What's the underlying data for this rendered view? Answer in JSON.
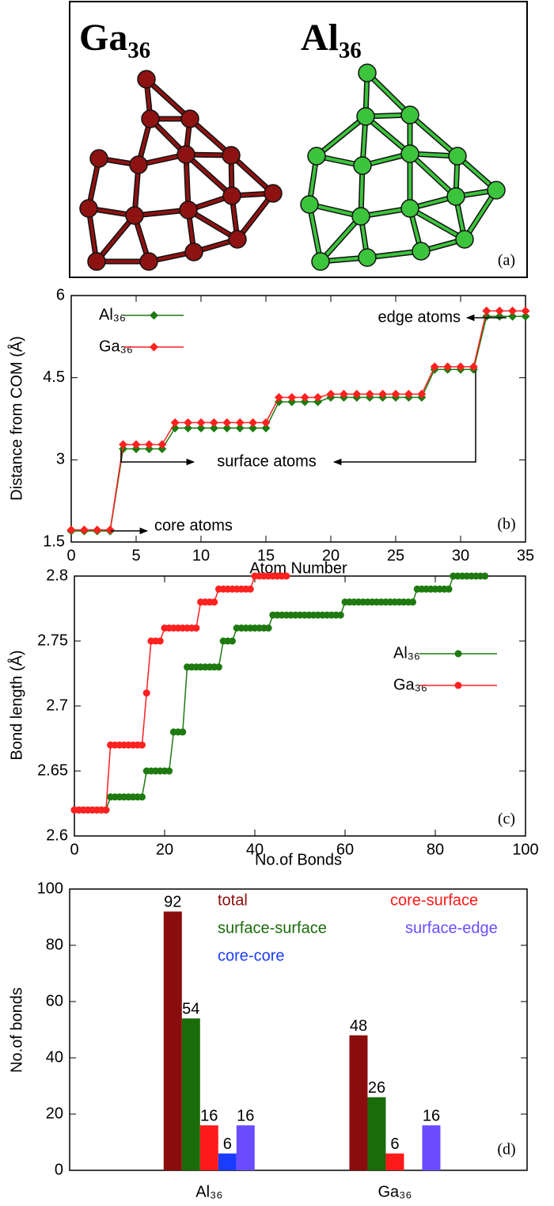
{
  "image_panel": {
    "labels": [
      "Ga₃₆",
      "Al₃₆"
    ],
    "panel_label": "(a)"
  },
  "chart_data": [
    {
      "type": "line",
      "panel_label": "(b)",
      "x_label": "Atom Number",
      "y_label": "Distance from COM (Å)",
      "x": [
        0,
        1,
        2,
        3,
        4,
        5,
        6,
        7,
        8,
        9,
        10,
        11,
        12,
        13,
        14,
        15,
        16,
        17,
        18,
        19,
        20,
        21,
        22,
        23,
        24,
        25,
        26,
        27,
        28,
        29,
        30,
        31,
        32,
        33,
        34,
        35
      ],
      "xlim": [
        0,
        35
      ],
      "xticks": [
        0,
        5,
        10,
        15,
        20,
        25,
        30,
        35
      ],
      "ylim": [
        1.5,
        6
      ],
      "yticks": [
        1.5,
        3,
        4.5,
        6
      ],
      "marker": "diamond",
      "legend": "upper left",
      "series": [
        {
          "name": "Al₃₆",
          "color": "#1e7a10",
          "values": [
            1.7,
            1.7,
            1.7,
            1.7,
            3.2,
            3.2,
            3.2,
            3.2,
            3.58,
            3.58,
            3.58,
            3.58,
            3.58,
            3.58,
            3.58,
            3.58,
            4.06,
            4.06,
            4.06,
            4.06,
            4.14,
            4.14,
            4.14,
            4.14,
            4.14,
            4.14,
            4.14,
            4.14,
            4.65,
            4.65,
            4.65,
            4.65,
            5.62,
            5.62,
            5.62,
            5.62
          ]
        },
        {
          "name": "Ga₃₆",
          "color": "#ff2020",
          "values": [
            1.72,
            1.72,
            1.72,
            1.72,
            3.28,
            3.28,
            3.28,
            3.28,
            3.68,
            3.68,
            3.68,
            3.68,
            3.68,
            3.68,
            3.68,
            3.68,
            4.14,
            4.14,
            4.14,
            4.14,
            4.2,
            4.2,
            4.2,
            4.2,
            4.2,
            4.2,
            4.2,
            4.2,
            4.7,
            4.7,
            4.7,
            4.7,
            5.72,
            5.72,
            5.72,
            5.72
          ]
        }
      ],
      "annotations": [
        "edge atoms",
        "surface atoms",
        "core atoms"
      ]
    },
    {
      "type": "line",
      "panel_label": "(c)",
      "x_label": "No.of Bonds",
      "y_label": "Bond length (Å)",
      "xlim": [
        0,
        100
      ],
      "xticks": [
        0,
        20,
        40,
        60,
        80,
        100
      ],
      "ylim": [
        2.6,
        2.8
      ],
      "yticks": [
        2.6,
        2.65,
        2.7,
        2.75,
        2.8
      ],
      "marker": "circle",
      "legend": "right",
      "series": [
        {
          "name": "Al₃₆",
          "color": "#1e7a10",
          "x": [
            0,
            1,
            2,
            3,
            4,
            5,
            6,
            7,
            8,
            9,
            10,
            11,
            12,
            13,
            14,
            15,
            16,
            17,
            18,
            19,
            20,
            21,
            22,
            23,
            24,
            25,
            26,
            27,
            28,
            29,
            30,
            31,
            32,
            33,
            34,
            35,
            36,
            37,
            38,
            39,
            40,
            41,
            42,
            43,
            44,
            45,
            46,
            47,
            48,
            49,
            50,
            51,
            52,
            53,
            54,
            55,
            56,
            57,
            58,
            59,
            60,
            61,
            62,
            63,
            64,
            65,
            66,
            67,
            68,
            69,
            70,
            71,
            72,
            73,
            74,
            75,
            76,
            77,
            78,
            79,
            80,
            81,
            82,
            83,
            84,
            85,
            86,
            87,
            88,
            89,
            90,
            91
          ],
          "values": [
            2.62,
            2.62,
            2.62,
            2.62,
            2.62,
            2.62,
            2.62,
            2.62,
            2.63,
            2.63,
            2.63,
            2.63,
            2.63,
            2.63,
            2.63,
            2.63,
            2.65,
            2.65,
            2.65,
            2.65,
            2.65,
            2.65,
            2.68,
            2.68,
            2.68,
            2.73,
            2.73,
            2.73,
            2.73,
            2.73,
            2.73,
            2.73,
            2.73,
            2.75,
            2.75,
            2.75,
            2.76,
            2.76,
            2.76,
            2.76,
            2.76,
            2.76,
            2.76,
            2.76,
            2.77,
            2.77,
            2.77,
            2.77,
            2.77,
            2.77,
            2.77,
            2.77,
            2.77,
            2.77,
            2.77,
            2.77,
            2.77,
            2.77,
            2.77,
            2.77,
            2.78,
            2.78,
            2.78,
            2.78,
            2.78,
            2.78,
            2.78,
            2.78,
            2.78,
            2.78,
            2.78,
            2.78,
            2.78,
            2.78,
            2.78,
            2.78,
            2.79,
            2.79,
            2.79,
            2.79,
            2.79,
            2.79,
            2.79,
            2.79,
            2.8,
            2.8,
            2.8,
            2.8,
            2.8,
            2.8,
            2.8,
            2.8
          ]
        },
        {
          "name": "Ga₃₆",
          "color": "#ff2020",
          "x": [
            0,
            1,
            2,
            3,
            4,
            5,
            6,
            7,
            8,
            9,
            10,
            11,
            12,
            13,
            14,
            15,
            16,
            17,
            18,
            19,
            20,
            21,
            22,
            23,
            24,
            25,
            26,
            27,
            28,
            29,
            30,
            31,
            32,
            33,
            34,
            35,
            36,
            37,
            38,
            39,
            40,
            41,
            42,
            43,
            44,
            45,
            46,
            47
          ],
          "values": [
            2.62,
            2.62,
            2.62,
            2.62,
            2.62,
            2.62,
            2.62,
            2.62,
            2.67,
            2.67,
            2.67,
            2.67,
            2.67,
            2.67,
            2.67,
            2.67,
            2.71,
            2.75,
            2.75,
            2.75,
            2.76,
            2.76,
            2.76,
            2.76,
            2.76,
            2.76,
            2.76,
            2.76,
            2.78,
            2.78,
            2.78,
            2.78,
            2.79,
            2.79,
            2.79,
            2.79,
            2.79,
            2.79,
            2.79,
            2.79,
            2.8,
            2.8,
            2.8,
            2.8,
            2.8,
            2.8,
            2.8,
            2.8
          ]
        }
      ]
    },
    {
      "type": "bar",
      "panel_label": "(d)",
      "y_label": "No.of bonds",
      "categories": [
        "Al₃₆",
        "Ga₃₆"
      ],
      "ylim": [
        0,
        100
      ],
      "yticks": [
        0,
        20,
        40,
        60,
        80,
        100
      ],
      "series": [
        {
          "name": "total",
          "color": "#8b0c0c",
          "values": [
            92,
            48
          ]
        },
        {
          "name": "surface-surface",
          "color": "#1a6b0a",
          "values": [
            54,
            26
          ]
        },
        {
          "name": "core-surface",
          "color": "#ff1a1a",
          "values": [
            16,
            6
          ]
        },
        {
          "name": "core-core",
          "color": "#1a3cff",
          "values": [
            6,
            null
          ]
        },
        {
          "name": "surface-edge",
          "color": "#6b4cff",
          "values": [
            16,
            16
          ]
        }
      ]
    }
  ]
}
